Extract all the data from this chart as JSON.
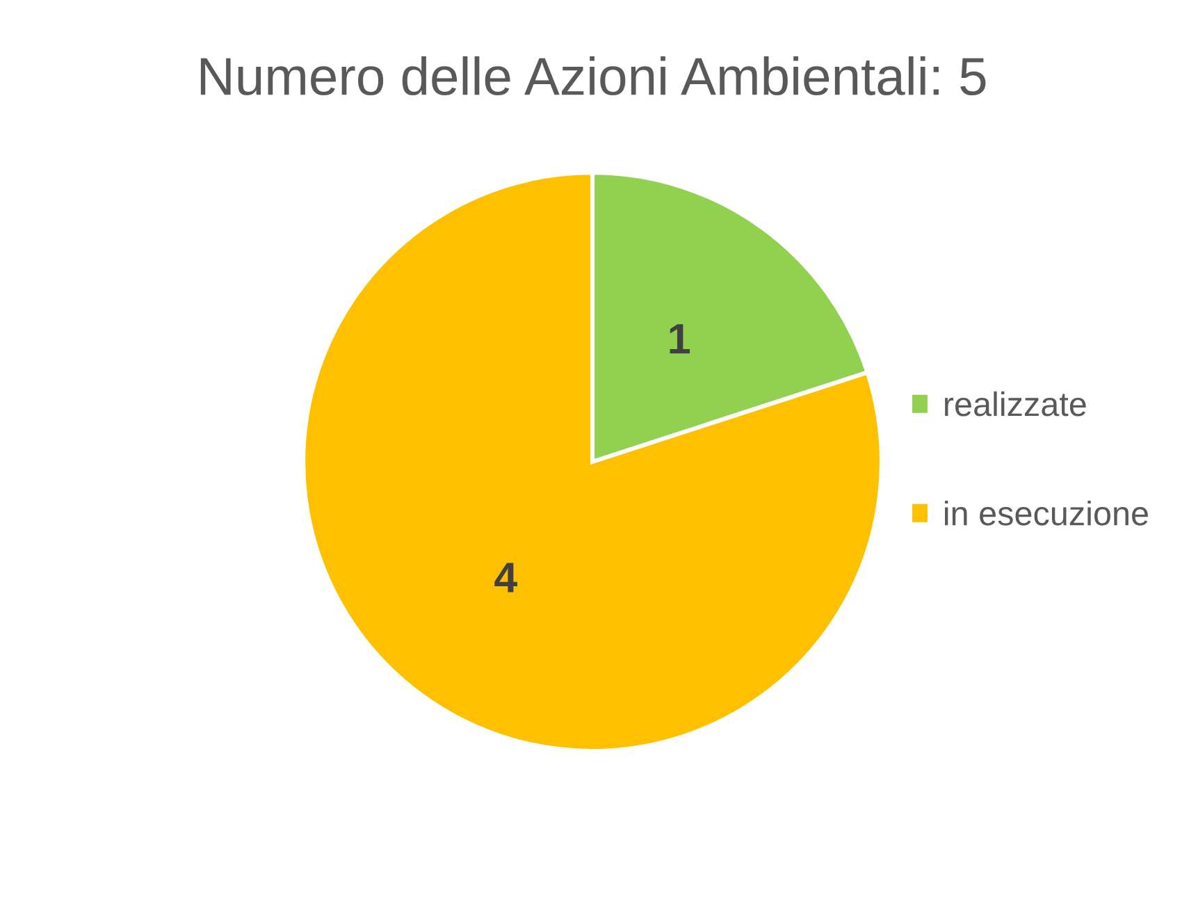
{
  "chart_data": {
    "type": "pie",
    "title": "Numero delle Azioni Ambientali: 5",
    "categories": [
      "realizzate",
      "in esecuzione"
    ],
    "values": [
      1,
      4
    ],
    "colors": [
      "#92d050",
      "#ffc000"
    ],
    "data_labels": true,
    "legend": "right"
  }
}
